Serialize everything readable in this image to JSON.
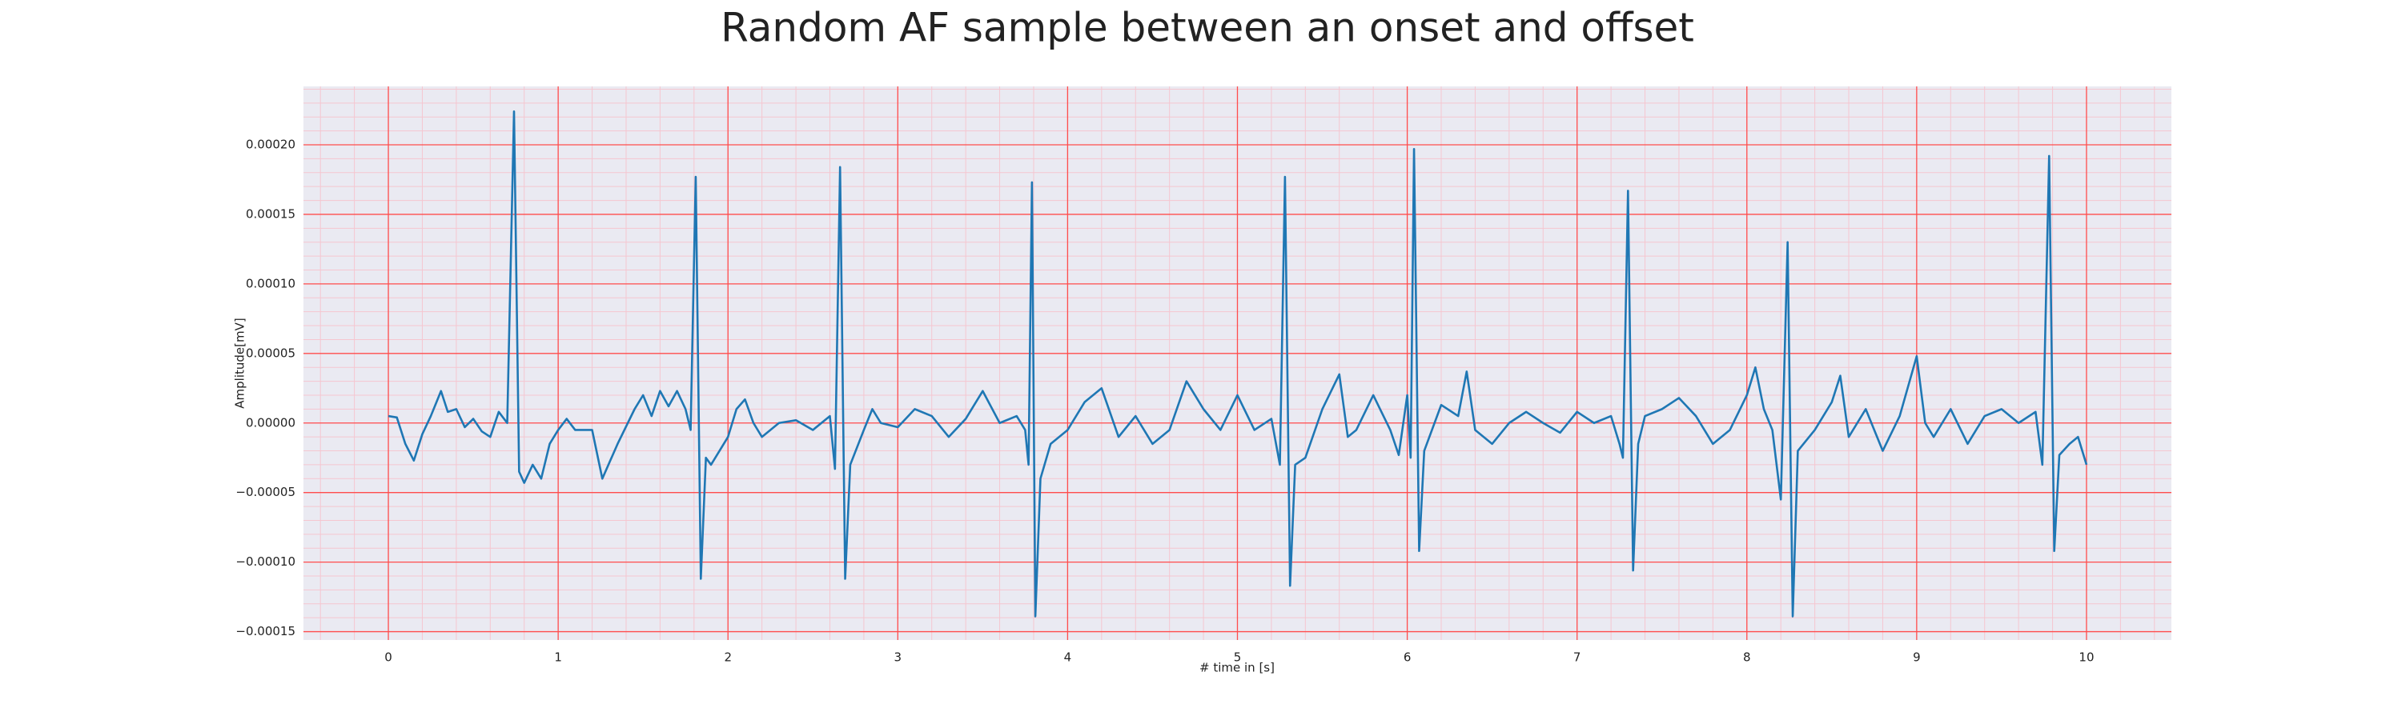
{
  "chart_data": {
    "type": "line",
    "title": "Random AF sample between an onset and offset",
    "xlabel": "# time in [s]",
    "ylabel": "Amplitude[mV]",
    "color": "#1f77b4",
    "grid": true,
    "grid_color": "#ff4d4d",
    "minor_grid": true,
    "minor_grid_color": "#f5c6d0",
    "background": "#eaeaf2",
    "xlim": [
      -0.5,
      10.5
    ],
    "xticks": [
      0,
      1,
      2,
      3,
      4,
      5,
      6,
      7,
      8,
      9,
      10
    ],
    "ylim": [
      -0.000156,
      0.000242
    ],
    "yticks": [
      {
        "value": -0.00015,
        "label": "−0.00015"
      },
      {
        "value": -0.0001,
        "label": "−0.00010"
      },
      {
        "value": -5e-05,
        "label": "−0.00005"
      },
      {
        "value": 0,
        "label": "0.00000"
      },
      {
        "value": 5e-05,
        "label": "0.00005"
      },
      {
        "value": 0.0001,
        "label": "0.00010"
      },
      {
        "value": 0.00015,
        "label": "0.00015"
      },
      {
        "value": 0.0002,
        "label": "0.00020"
      }
    ],
    "x": [
      0,
      0.05,
      0.1,
      0.15,
      0.2,
      0.25,
      0.31,
      0.35,
      0.4,
      0.45,
      0.5,
      0.55,
      0.6,
      0.65,
      0.7,
      0.74,
      0.77,
      0.8,
      0.85,
      0.9,
      0.95,
      1.0,
      1.05,
      1.1,
      1.2,
      1.26,
      1.35,
      1.45,
      1.5,
      1.55,
      1.6,
      1.65,
      1.7,
      1.75,
      1.78,
      1.81,
      1.84,
      1.87,
      1.9,
      1.95,
      2.0,
      2.05,
      2.1,
      2.15,
      2.2,
      2.3,
      2.4,
      2.5,
      2.6,
      2.63,
      2.66,
      2.69,
      2.72,
      2.8,
      2.85,
      2.9,
      3.0,
      3.1,
      3.2,
      3.3,
      3.4,
      3.5,
      3.6,
      3.7,
      3.75,
      3.77,
      3.79,
      3.81,
      3.84,
      3.9,
      4.0,
      4.1,
      4.2,
      4.3,
      4.4,
      4.5,
      4.6,
      4.7,
      4.8,
      4.9,
      5.0,
      5.1,
      5.2,
      5.25,
      5.28,
      5.31,
      5.34,
      5.4,
      5.5,
      5.6,
      5.65,
      5.7,
      5.8,
      5.9,
      5.95,
      6.0,
      6.02,
      6.04,
      6.07,
      6.1,
      6.2,
      6.3,
      6.35,
      6.4,
      6.5,
      6.6,
      6.7,
      6.8,
      6.9,
      7.0,
      7.1,
      7.2,
      7.25,
      7.27,
      7.3,
      7.33,
      7.36,
      7.4,
      7.5,
      7.6,
      7.7,
      7.8,
      7.9,
      8.0,
      8.05,
      8.1,
      8.15,
      8.2,
      8.24,
      8.27,
      8.3,
      8.4,
      8.5,
      8.55,
      8.6,
      8.7,
      8.8,
      8.9,
      9.0,
      9.05,
      9.1,
      9.2,
      9.3,
      9.4,
      9.5,
      9.6,
      9.7,
      9.74,
      9.78,
      9.81,
      9.84,
      9.9,
      9.95,
      10.0
    ],
    "values": [
      5e-06,
      4e-06,
      -1.5e-05,
      -2.7e-05,
      -8e-06,
      5e-06,
      2.3e-05,
      8e-06,
      1e-05,
      -3e-06,
      3e-06,
      -6e-06,
      -1e-05,
      8e-06,
      0,
      0.000224,
      -3.5e-05,
      -4.3e-05,
      -3e-05,
      -4e-05,
      -1.5e-05,
      -5e-06,
      3e-06,
      -5e-06,
      -5e-06,
      -4e-05,
      -1.5e-05,
      1e-05,
      2e-05,
      5e-06,
      2.3e-05,
      1.2e-05,
      2.3e-05,
      1e-05,
      -5e-06,
      0.000177,
      -0.000112,
      -2.5e-05,
      -3e-05,
      -2e-05,
      -1e-05,
      1e-05,
      1.7e-05,
      0,
      -1e-05,
      0,
      2e-06,
      -5e-06,
      5e-06,
      -3.3e-05,
      0.000184,
      -0.000112,
      -3e-05,
      -5e-06,
      1e-05,
      0,
      -3e-06,
      1e-05,
      5e-06,
      -1e-05,
      3e-06,
      2.3e-05,
      0,
      5e-06,
      -5e-06,
      -3e-05,
      0.000173,
      -0.000139,
      -4e-05,
      -1.5e-05,
      -5e-06,
      1.5e-05,
      2.5e-05,
      -1e-05,
      5e-06,
      -1.5e-05,
      -5e-06,
      3e-05,
      1e-05,
      -5e-06,
      2e-05,
      -5e-06,
      3e-06,
      -3e-05,
      0.000177,
      -0.000117,
      -3e-05,
      -2.5e-05,
      1e-05,
      3.5e-05,
      -1e-05,
      -5e-06,
      2e-05,
      -5e-06,
      -2.3e-05,
      2e-05,
      -2.5e-05,
      0.000197,
      -9.2e-05,
      -2e-05,
      1.3e-05,
      5e-06,
      3.7e-05,
      -5e-06,
      -1.5e-05,
      0,
      8e-06,
      0,
      -7e-06,
      8e-06,
      0,
      5e-06,
      -1.5e-05,
      -2.5e-05,
      0.000167,
      -0.000106,
      -1.5e-05,
      5e-06,
      1e-05,
      1.8e-05,
      5e-06,
      -1.5e-05,
      -5e-06,
      2e-05,
      4e-05,
      1e-05,
      -5e-06,
      -5.5e-05,
      0.00013,
      -0.000139,
      -2e-05,
      -5e-06,
      1.5e-05,
      3.4e-05,
      -1e-05,
      1e-05,
      -2e-05,
      5e-06,
      4.8e-05,
      0,
      -1e-05,
      1e-05,
      -1.5e-05,
      5e-06,
      1e-05,
      0,
      8e-06,
      -3e-05,
      0.000192,
      -9.2e-05,
      -2.3e-05,
      -1.5e-05,
      -1e-05,
      -3e-05
    ]
  }
}
